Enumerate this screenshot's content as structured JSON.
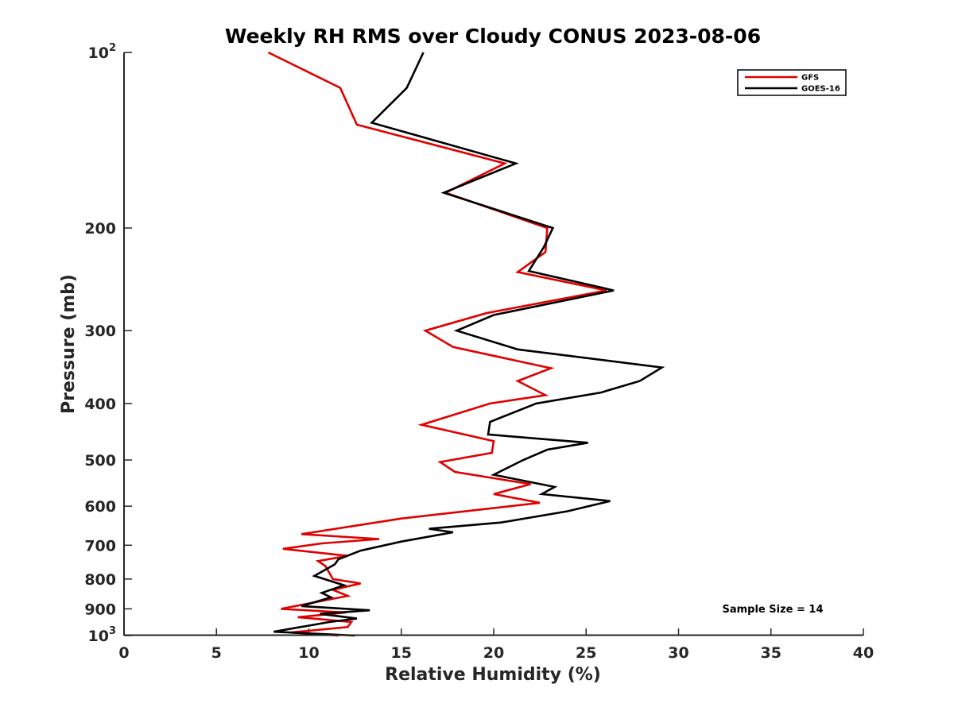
{
  "chart_data": {
    "type": "line",
    "title": "Weekly RH RMS over Cloudy CONUS 2023-08-06",
    "xlabel": "Relative Humidity (%)",
    "ylabel": "Pressure (mb)",
    "xlim": [
      0,
      40
    ],
    "ylim": [
      100,
      1000
    ],
    "y_scale": "log",
    "y_reversed": true,
    "xticks": [
      0,
      5,
      10,
      15,
      20,
      25,
      30,
      35,
      40
    ],
    "yticks": [
      {
        "value": 100,
        "base": "10",
        "exp": "2"
      },
      {
        "value": 200,
        "label": "200"
      },
      {
        "value": 300,
        "label": "300"
      },
      {
        "value": 400,
        "label": "400"
      },
      {
        "value": 500,
        "label": "500"
      },
      {
        "value": 600,
        "label": "600"
      },
      {
        "value": 700,
        "label": "700"
      },
      {
        "value": 800,
        "label": "800"
      },
      {
        "value": 900,
        "label": "900"
      },
      {
        "value": 1000,
        "base": "10",
        "exp": "3"
      }
    ],
    "grid": false,
    "legend_position": "top-right",
    "annotation": "Sample Size = 14",
    "series": [
      {
        "name": "GFS",
        "color": "#e00000",
        "points": [
          [
            7.8,
            100
          ],
          [
            11.7,
            115
          ],
          [
            12.6,
            133
          ],
          [
            20.6,
            155
          ],
          [
            17.4,
            174
          ],
          [
            22.9,
            200
          ],
          [
            22.8,
            220
          ],
          [
            21.3,
            238
          ],
          [
            26.1,
            256
          ],
          [
            19.6,
            280
          ],
          [
            16.3,
            300
          ],
          [
            17.8,
            320
          ],
          [
            23.1,
            348
          ],
          [
            21.3,
            366
          ],
          [
            22.8,
            387
          ],
          [
            19.8,
            400
          ],
          [
            16.1,
            435
          ],
          [
            20.0,
            464
          ],
          [
            19.9,
            486
          ],
          [
            17.1,
            504
          ],
          [
            17.9,
            524
          ],
          [
            22.0,
            550
          ],
          [
            20.0,
            572
          ],
          [
            22.5,
            592
          ],
          [
            15.0,
            630
          ],
          [
            9.6,
            670
          ],
          [
            13.8,
            683
          ],
          [
            10.7,
            695
          ],
          [
            8.6,
            710
          ],
          [
            12.1,
            730
          ],
          [
            10.5,
            745
          ],
          [
            10.9,
            760
          ],
          [
            11.3,
            800
          ],
          [
            12.8,
            814
          ],
          [
            11.3,
            835
          ],
          [
            12.1,
            855
          ],
          [
            8.5,
            900
          ],
          [
            12.0,
            913
          ],
          [
            9.4,
            930
          ],
          [
            12.3,
            948
          ],
          [
            12.1,
            967
          ],
          [
            9.0,
            988
          ],
          [
            11.6,
            1000
          ]
        ]
      },
      {
        "name": "GOES-16",
        "color": "#000000",
        "points": [
          [
            16.2,
            100
          ],
          [
            15.3,
            115
          ],
          [
            13.4,
            132
          ],
          [
            21.2,
            155
          ],
          [
            17.3,
            174
          ],
          [
            23.2,
            200
          ],
          [
            22.7,
            216
          ],
          [
            21.9,
            237
          ],
          [
            26.5,
            256
          ],
          [
            20.0,
            282
          ],
          [
            18.0,
            300
          ],
          [
            21.3,
            323
          ],
          [
            29.1,
            347
          ],
          [
            27.9,
            366
          ],
          [
            25.8,
            383
          ],
          [
            22.3,
            400
          ],
          [
            19.8,
            430
          ],
          [
            19.7,
            452
          ],
          [
            25.1,
            467
          ],
          [
            22.9,
            480
          ],
          [
            21.6,
            500
          ],
          [
            20.0,
            530
          ],
          [
            23.3,
            556
          ],
          [
            22.6,
            572
          ],
          [
            26.3,
            588
          ],
          [
            24.0,
            612
          ],
          [
            20.4,
            640
          ],
          [
            16.5,
            656
          ],
          [
            17.8,
            665
          ],
          [
            15.0,
            690
          ],
          [
            12.8,
            715
          ],
          [
            11.6,
            740
          ],
          [
            11.4,
            755
          ],
          [
            10.3,
            790
          ],
          [
            11.9,
            820
          ],
          [
            10.7,
            845
          ],
          [
            11.2,
            860
          ],
          [
            9.6,
            890
          ],
          [
            13.3,
            905
          ],
          [
            10.6,
            918
          ],
          [
            12.6,
            935
          ],
          [
            11.1,
            948
          ],
          [
            8.1,
            985
          ],
          [
            12.5,
            1000
          ]
        ]
      }
    ]
  }
}
